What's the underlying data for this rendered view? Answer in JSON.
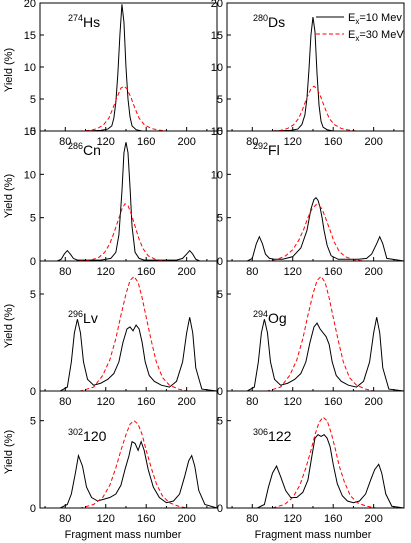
{
  "figure": {
    "xlabel": "Fragment mass number",
    "ylabel": "Yield (%)",
    "legend": {
      "placement": "top-right",
      "entries": [
        {
          "prefix": "E",
          "sub": "x",
          "suffix": "=10 Mev",
          "color": "#000000",
          "dash": "solid"
        },
        {
          "prefix": "E",
          "sub": "x",
          "suffix": "=30 MeV",
          "color": "#ff0000",
          "dash": "dashed"
        }
      ]
    }
  },
  "chart_data": [
    {
      "type": "line",
      "nucleus_mass": "274",
      "nucleus_symbol": "Hs",
      "xlim": [
        55,
        230
      ],
      "ylim": [
        0,
        20
      ],
      "yticks": [
        0,
        5,
        10,
        15,
        20
      ],
      "xticks": [
        80,
        120,
        160,
        200
      ],
      "series": [
        {
          "name": "Ex=10 Mev",
          "x": [
            55,
            100,
            115,
            122,
            126,
            128,
            130,
            132,
            134,
            136,
            138,
            140,
            142,
            144,
            146,
            150,
            156,
            170,
            230
          ],
          "y": [
            0,
            0,
            0.1,
            0.3,
            0.8,
            2,
            4.5,
            9,
            15,
            19.8,
            17,
            10,
            5,
            2.2,
            0.8,
            0.2,
            0,
            0,
            0
          ]
        },
        {
          "name": "Ex=30 MeV",
          "x": [
            55,
            95,
            105,
            112,
            118,
            123,
            127,
            131,
            135,
            138,
            141,
            145,
            149,
            153,
            158,
            165,
            172,
            180,
            230
          ],
          "y": [
            0,
            0,
            0.1,
            0.4,
            1,
            2,
            3.5,
            5.2,
            6.7,
            7,
            6.6,
            5.2,
            3.5,
            2,
            1,
            0.4,
            0.15,
            0,
            0
          ]
        }
      ]
    },
    {
      "type": "line",
      "nucleus_mass": "280",
      "nucleus_symbol": "Ds",
      "xlim": [
        55,
        230
      ],
      "ylim": [
        0,
        20
      ],
      "yticks": [
        0,
        5,
        10,
        15,
        20
      ],
      "xticks": [
        80,
        120,
        160,
        200
      ],
      "series": [
        {
          "name": "Ex=10 Mev",
          "x": [
            55,
            100,
            118,
            125,
            129,
            132,
            134,
            136,
            138,
            140,
            142,
            144,
            146,
            148,
            150,
            154,
            160,
            175,
            230
          ],
          "y": [
            0,
            0,
            0.1,
            0.3,
            1,
            2.5,
            5,
            9.5,
            15,
            17.8,
            15.5,
            9,
            4,
            1.5,
            0.6,
            0.2,
            0,
            0,
            0
          ]
        },
        {
          "name": "Ex=30 MeV",
          "x": [
            55,
            98,
            108,
            115,
            121,
            126,
            130,
            134,
            138,
            141,
            144,
            148,
            152,
            156,
            161,
            168,
            175,
            183,
            230
          ],
          "y": [
            0,
            0,
            0.1,
            0.4,
            1,
            2,
            3.5,
            5.2,
            6.6,
            7,
            6.6,
            5.2,
            3.5,
            2,
            1,
            0.4,
            0.15,
            0,
            0
          ]
        }
      ]
    },
    {
      "type": "line",
      "nucleus_mass": "286",
      "nucleus_symbol": "Cn",
      "xlim": [
        55,
        230
      ],
      "ylim": [
        0,
        15
      ],
      "yticks": [
        0,
        5,
        10,
        15
      ],
      "xticks": [
        80,
        120,
        160,
        200
      ],
      "series": [
        {
          "name": "Ex=10 Mev",
          "x": [
            55,
            72,
            76,
            79,
            82,
            85,
            88,
            92,
            100,
            115,
            125,
            130,
            133,
            136,
            138,
            140,
            142,
            144,
            146,
            149,
            153,
            158,
            170,
            190,
            196,
            200,
            203,
            206,
            209,
            213,
            230
          ],
          "y": [
            0,
            0,
            0.2,
            0.8,
            1.2,
            0.8,
            0.3,
            0.1,
            0.1,
            0.1,
            0.3,
            1,
            3,
            8,
            12.5,
            13.7,
            12.5,
            8.5,
            4,
            1,
            0.3,
            0.1,
            0.1,
            0.1,
            0.3,
            0.8,
            1.2,
            0.8,
            0.2,
            0,
            0
          ]
        },
        {
          "name": "Ex=30 MeV",
          "x": [
            55,
            90,
            105,
            113,
            119,
            124,
            128,
            132,
            136,
            139,
            142,
            145,
            149,
            153,
            157,
            162,
            169,
            177,
            190,
            230
          ],
          "y": [
            0,
            0,
            0.1,
            0.4,
            1,
            2,
            3.2,
            4.6,
            6,
            6.6,
            6.4,
            5.5,
            4,
            2.5,
            1.4,
            0.6,
            0.2,
            0.05,
            0,
            0
          ]
        }
      ]
    },
    {
      "type": "line",
      "nucleus_mass": "292",
      "nucleus_symbol": "Fl",
      "xlim": [
        55,
        230
      ],
      "ylim": [
        0,
        15
      ],
      "yticks": [
        0,
        5,
        10,
        15
      ],
      "xticks": [
        80,
        120,
        160,
        200
      ],
      "series": [
        {
          "name": "Ex=10 Mev",
          "x": [
            55,
            75,
            80,
            84,
            87,
            90,
            93,
            97,
            102,
            110,
            120,
            128,
            134,
            138,
            141,
            143,
            145,
            147,
            149,
            151,
            154,
            158,
            165,
            175,
            185,
            193,
            198,
            203,
            206,
            209,
            213,
            230
          ],
          "y": [
            0,
            0,
            0.3,
            2,
            2.8,
            2,
            0.8,
            0.3,
            0.2,
            0.2,
            0.5,
            1.5,
            3.5,
            6,
            7.1,
            7.3,
            7,
            6.2,
            5,
            3.5,
            1.8,
            0.6,
            0.2,
            0.2,
            0.2,
            0.3,
            0.8,
            2,
            2.8,
            2,
            0.3,
            0
          ]
        },
        {
          "name": "Ex=30 MeV",
          "x": [
            55,
            95,
            105,
            113,
            120,
            126,
            131,
            135,
            139,
            143,
            146,
            149,
            153,
            157,
            161,
            166,
            172,
            180,
            190,
            230
          ],
          "y": [
            0,
            0,
            0.2,
            0.6,
            1.3,
            2.4,
            3.7,
            5,
            6,
            6.5,
            6.4,
            6,
            4.8,
            3.5,
            2.2,
            1.1,
            0.5,
            0.15,
            0,
            0
          ]
        }
      ]
    },
    {
      "type": "line",
      "nucleus_mass": "296",
      "nucleus_symbol": "Lv",
      "xlim": [
        55,
        230
      ],
      "ylim": [
        0,
        6.7
      ],
      "yticks": [
        0,
        5
      ],
      "xticks": [
        80,
        120,
        160,
        200
      ],
      "series": [
        {
          "name": "Ex=10 Mev",
          "x": [
            55,
            75,
            82,
            86,
            89,
            92,
            95,
            98,
            102,
            108,
            115,
            122,
            128,
            133,
            137,
            141,
            144,
            147,
            150,
            153,
            156,
            159,
            163,
            168,
            175,
            183,
            190,
            196,
            200,
            203,
            206,
            209,
            215,
            230
          ],
          "y": [
            0,
            0,
            0.2,
            1.5,
            3,
            3.7,
            3,
            1.5,
            0.6,
            0.3,
            0.4,
            0.6,
            0.9,
            1.5,
            2.5,
            3.2,
            3.3,
            3.1,
            3.4,
            3.2,
            2.5,
            1.5,
            0.8,
            0.5,
            0.3,
            0.2,
            0.5,
            1.5,
            3,
            3.8,
            3,
            1.2,
            0.1,
            0
          ]
        },
        {
          "name": "Ex=30 MeV",
          "x": [
            55,
            95,
            108,
            117,
            124,
            130,
            135,
            140,
            144,
            148,
            152,
            156,
            160,
            165,
            170,
            176,
            183,
            192,
            200,
            230
          ],
          "y": [
            0,
            0,
            0.2,
            0.8,
            1.6,
            2.7,
            3.9,
            5,
            5.7,
            5.9,
            5.6,
            4.8,
            3.8,
            2.6,
            1.5,
            0.7,
            0.3,
            0.1,
            0,
            0
          ]
        }
      ]
    },
    {
      "type": "line",
      "nucleus_mass": "294",
      "nucleus_symbol": "Og",
      "xlim": [
        55,
        230
      ],
      "ylim": [
        0,
        6.7
      ],
      "yticks": [
        0,
        5
      ],
      "xticks": [
        80,
        120,
        160,
        200
      ],
      "series": [
        {
          "name": "Ex=10 Mev",
          "x": [
            55,
            75,
            82,
            86,
            89,
            92,
            95,
            98,
            102,
            108,
            115,
            122,
            128,
            133,
            137,
            141,
            144,
            147,
            150,
            153,
            156,
            159,
            163,
            168,
            175,
            183,
            190,
            196,
            200,
            203,
            206,
            209,
            215,
            230
          ],
          "y": [
            0,
            0,
            0.2,
            1.5,
            3,
            3.7,
            3,
            1.5,
            0.6,
            0.3,
            0.4,
            0.6,
            0.9,
            1.5,
            2.5,
            3.3,
            3.5,
            3.2,
            3,
            2.8,
            2.4,
            1.5,
            0.8,
            0.5,
            0.3,
            0.2,
            0.5,
            1.5,
            3,
            3.8,
            3,
            1.2,
            0.1,
            0
          ]
        },
        {
          "name": "Ex=30 MeV",
          "x": [
            55,
            95,
            108,
            117,
            124,
            130,
            135,
            140,
            144,
            148,
            152,
            156,
            160,
            165,
            170,
            176,
            183,
            192,
            200,
            230
          ],
          "y": [
            0,
            0,
            0.2,
            0.8,
            1.6,
            2.7,
            3.9,
            5,
            5.7,
            5.9,
            5.6,
            4.8,
            3.8,
            2.6,
            1.5,
            0.7,
            0.3,
            0.1,
            0,
            0
          ]
        }
      ]
    },
    {
      "type": "line",
      "nucleus_mass": "302",
      "nucleus_symbol": "120",
      "xlim": [
        55,
        230
      ],
      "ylim": [
        0,
        6.7
      ],
      "yticks": [
        0,
        5
      ],
      "xticks": [
        80,
        120,
        160,
        200
      ],
      "series": [
        {
          "name": "Ex=10 Mev",
          "x": [
            55,
            75,
            82,
            86,
            90,
            93,
            97,
            101,
            106,
            112,
            118,
            124,
            130,
            135,
            139,
            143,
            146,
            149,
            152,
            155,
            158,
            162,
            167,
            173,
            180,
            187,
            193,
            198,
            202,
            205,
            208,
            212,
            218,
            230
          ],
          "y": [
            0,
            0,
            0.2,
            0.8,
            2,
            3,
            2.4,
            1.2,
            0.6,
            0.4,
            0.5,
            0.6,
            0.8,
            1.3,
            2.2,
            3,
            3.8,
            3.7,
            3.3,
            3.8,
            3.3,
            2.2,
            1.2,
            0.6,
            0.3,
            0.4,
            0.8,
            1.8,
            2.7,
            3,
            2.4,
            1,
            0.2,
            0
          ]
        },
        {
          "name": "Ex=30 MeV",
          "x": [
            55,
            95,
            108,
            117,
            124,
            130,
            135,
            140,
            144,
            148,
            152,
            156,
            160,
            165,
            170,
            176,
            183,
            192,
            200,
            230
          ],
          "y": [
            0,
            0,
            0.2,
            0.6,
            1.3,
            2.3,
            3.3,
            4.2,
            4.8,
            5,
            4.8,
            4.2,
            3.3,
            2.3,
            1.4,
            0.7,
            0.3,
            0.1,
            0,
            0
          ]
        }
      ]
    },
    {
      "type": "line",
      "nucleus_mass": "306",
      "nucleus_symbol": "122",
      "xlim": [
        55,
        230
      ],
      "ylim": [
        0,
        6.7
      ],
      "yticks": [
        0,
        5
      ],
      "xticks": [
        80,
        120,
        160,
        200
      ],
      "series": [
        {
          "name": "Ex=10 Mev",
          "x": [
            55,
            85,
            92,
            96,
            100,
            104,
            108,
            113,
            118,
            124,
            130,
            135,
            139,
            142,
            145,
            148,
            151,
            154,
            157,
            160,
            164,
            169,
            174,
            180,
            186,
            192,
            197,
            201,
            205,
            208,
            212,
            218,
            230
          ],
          "y": [
            0,
            0,
            0.2,
            1.2,
            2,
            2.4,
            1.8,
            1,
            0.6,
            0.6,
            0.9,
            1.6,
            3,
            4,
            4.2,
            4.1,
            4.2,
            4,
            3.5,
            2.5,
            1.4,
            0.7,
            0.4,
            0.3,
            0.4,
            0.8,
            1.6,
            2.2,
            2.5,
            2,
            0.8,
            0.1,
            0
          ]
        },
        {
          "name": "Ex=30 MeV",
          "x": [
            55,
            100,
            112,
            120,
            127,
            133,
            138,
            142,
            146,
            150,
            154,
            158,
            162,
            166,
            171,
            177,
            184,
            193,
            202,
            230
          ],
          "y": [
            0,
            0,
            0.2,
            0.6,
            1.3,
            2.3,
            3.3,
            4.2,
            4.9,
            5.2,
            5,
            4.3,
            3.4,
            2.4,
            1.5,
            0.7,
            0.3,
            0.1,
            0,
            0
          ]
        }
      ]
    }
  ]
}
